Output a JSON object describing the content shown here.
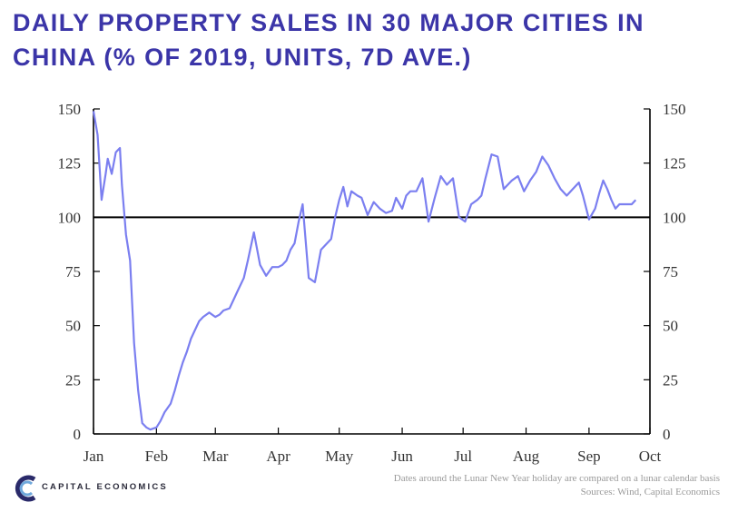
{
  "title": "DAILY PROPERTY SALES IN 30 MAJOR CITIES IN CHINA (% OF 2019, UNITS, 7D AVE.)",
  "footer": {
    "note": "Dates around the Lunar New Year holiday are compared on a lunar calendar basis",
    "sources": "Sources: Wind, Capital Economics"
  },
  "logo": {
    "text": "CAPITAL ECONOMICS",
    "icon": "capital-economics-c-logo"
  },
  "colors": {
    "line": "#7b7ff0",
    "title": "#3b35a8",
    "reference": "#000000"
  },
  "chart_data": {
    "type": "line",
    "title": "DAILY PROPERTY SALES IN 30 MAJOR CITIES IN CHINA (% OF 2019, UNITS, 7D AVE.)",
    "xlabel": "",
    "ylabel": "",
    "x_ticks": [
      "Jan",
      "Feb",
      "Mar",
      "Apr",
      "May",
      "Jun",
      "Jul",
      "Aug",
      "Sep",
      "Oct"
    ],
    "y_ticks": [
      0,
      25,
      50,
      75,
      100,
      125,
      150
    ],
    "ylim": [
      0,
      150
    ],
    "reference_line": 100,
    "grid": false,
    "series": [
      {
        "x": [
          "2020-01-01",
          "2020-01-03",
          "2020-01-05",
          "2020-01-07",
          "2020-01-08",
          "2020-01-10",
          "2020-01-12",
          "2020-01-14",
          "2020-01-15",
          "2020-01-17",
          "2020-01-19",
          "2020-01-21",
          "2020-01-23",
          "2020-01-25",
          "2020-01-27",
          "2020-01-29",
          "2020-02-01",
          "2020-02-03",
          "2020-02-05",
          "2020-02-08",
          "2020-02-10",
          "2020-02-12",
          "2020-02-14",
          "2020-02-16",
          "2020-02-18",
          "2020-02-20",
          "2020-02-22",
          "2020-02-24",
          "2020-02-27",
          "2020-03-01",
          "2020-03-03",
          "2020-03-05",
          "2020-03-08",
          "2020-03-10",
          "2020-03-12",
          "2020-03-15",
          "2020-03-17",
          "2020-03-20",
          "2020-03-23",
          "2020-03-26",
          "2020-03-29",
          "2020-04-01",
          "2020-04-03",
          "2020-04-05",
          "2020-04-07",
          "2020-04-09",
          "2020-04-11",
          "2020-04-13",
          "2020-04-16",
          "2020-04-19",
          "2020-04-22",
          "2020-04-25",
          "2020-04-27",
          "2020-04-29",
          "2020-05-01",
          "2020-05-03",
          "2020-05-05",
          "2020-05-07",
          "2020-05-10",
          "2020-05-12",
          "2020-05-15",
          "2020-05-18",
          "2020-05-21",
          "2020-05-24",
          "2020-05-27",
          "2020-05-29",
          "2020-06-01",
          "2020-06-03",
          "2020-06-05",
          "2020-06-08",
          "2020-06-11",
          "2020-06-14",
          "2020-06-17",
          "2020-06-20",
          "2020-06-23",
          "2020-06-26",
          "2020-06-29",
          "2020-07-02",
          "2020-07-05",
          "2020-07-08",
          "2020-07-10",
          "2020-07-12",
          "2020-07-15",
          "2020-07-18",
          "2020-07-21",
          "2020-07-23",
          "2020-07-25",
          "2020-07-28",
          "2020-07-31",
          "2020-08-03",
          "2020-08-06",
          "2020-08-09",
          "2020-08-12",
          "2020-08-15",
          "2020-08-18",
          "2020-08-21",
          "2020-08-24",
          "2020-08-27",
          "2020-08-29",
          "2020-09-01",
          "2020-09-04",
          "2020-09-06",
          "2020-09-08",
          "2020-09-10",
          "2020-09-12",
          "2020-09-14",
          "2020-09-16",
          "2020-09-18",
          "2020-09-20",
          "2020-09-22",
          "2020-09-24"
        ],
        "y": [
          149,
          138,
          108,
          120,
          127,
          120,
          130,
          132,
          115,
          92,
          80,
          42,
          20,
          5,
          3,
          2,
          3,
          6,
          10,
          14,
          20,
          27,
          33,
          38,
          44,
          48,
          52,
          54,
          56,
          54,
          55,
          57,
          58,
          62,
          66,
          72,
          80,
          93,
          78,
          73,
          77,
          77,
          78,
          80,
          85,
          88,
          98,
          106,
          72,
          70,
          85,
          88,
          90,
          100,
          108,
          114,
          105,
          112,
          110,
          109,
          101,
          107,
          104,
          102,
          103,
          109,
          104,
          110,
          112,
          112,
          118,
          98,
          109,
          119,
          115,
          118,
          100,
          98,
          106,
          108,
          110,
          118,
          129,
          128,
          113,
          115,
          117,
          119,
          112,
          117,
          121,
          128,
          124,
          118,
          113,
          110,
          113,
          116,
          110,
          99,
          104,
          111,
          117,
          113,
          108,
          104,
          106,
          106,
          106,
          106,
          108
        ]
      }
    ]
  }
}
